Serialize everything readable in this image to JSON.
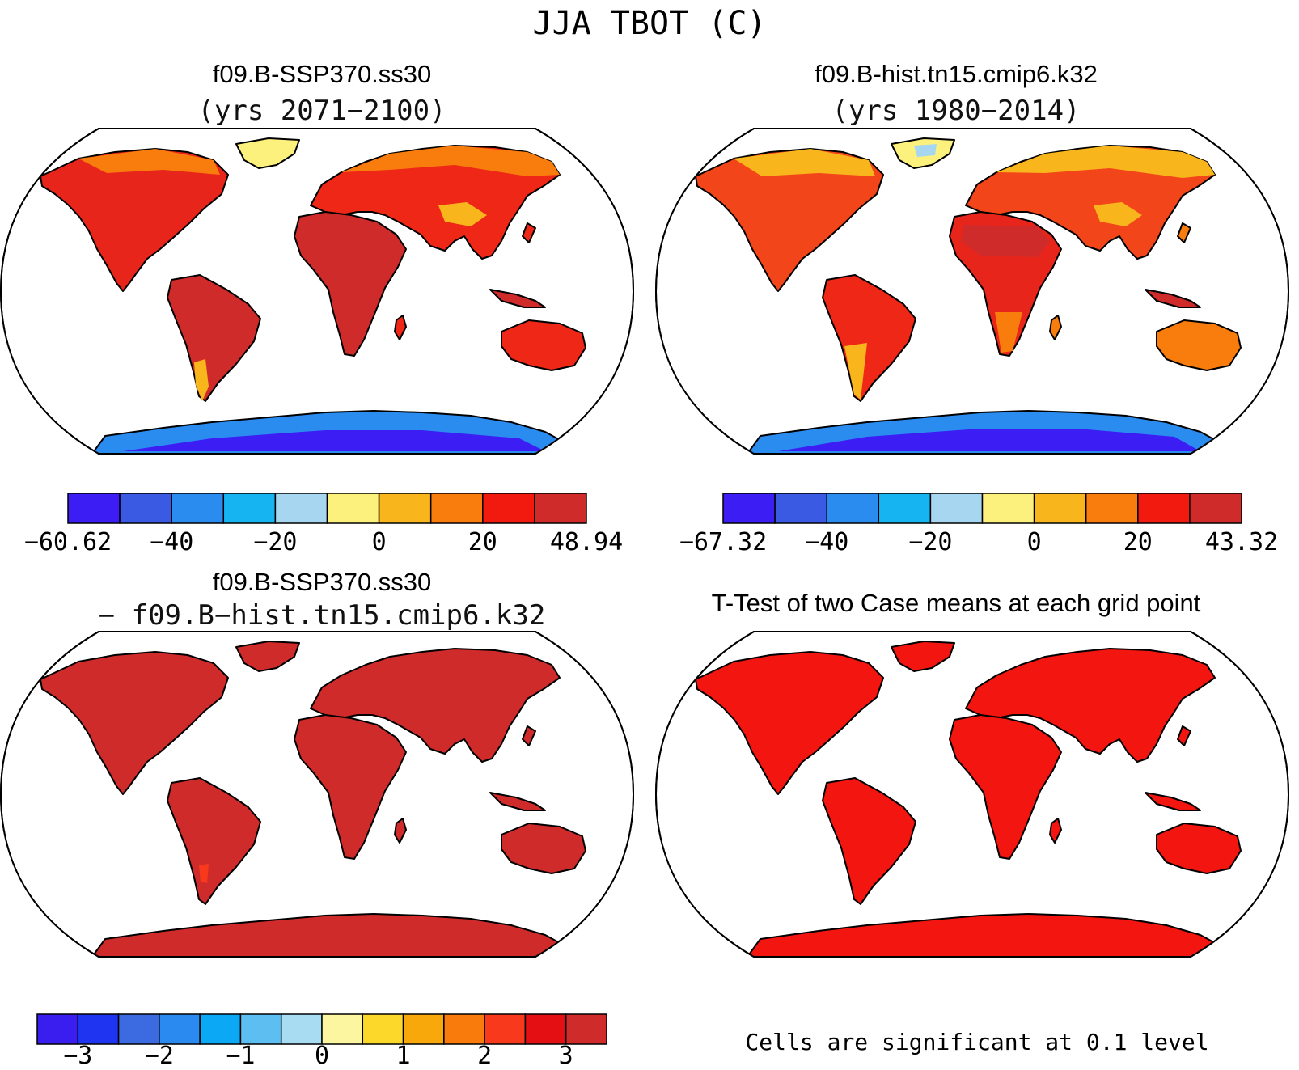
{
  "title": "JJA TBOT (C)",
  "colors": {
    "cool": [
      "#3c1ef5",
      "#3b5ae3",
      "#2b8cf0",
      "#17b4f2",
      "#a6d6f0"
    ],
    "warm": [
      "#fdf17e",
      "#f9b51c",
      "#f97d0d",
      "#f2190f",
      "#d02b2b"
    ],
    "diff": [
      "#3a1ef0",
      "#1e34f0",
      "#3c6ae0",
      "#2b8af0",
      "#0aa8f5",
      "#5dbef2",
      "#a8dcf2",
      "#fdf6a0",
      "#fbd82a",
      "#f9a80c",
      "#f97b0b",
      "#f9391c",
      "#e30f12",
      "#d02b2b"
    ],
    "ttest_land": "#f3150f"
  },
  "panels": [
    {
      "id": "case1",
      "title": "f09.B-SSP370.ss30",
      "subtitle": "(yrs 2071−2100)",
      "colorbar": {
        "labels": [
          "−60.62",
          "−40",
          "−20",
          "0",
          "20",
          "48.94"
        ]
      }
    },
    {
      "id": "case2",
      "title": "f09.B-hist.tn15.cmip6.k32",
      "subtitle": "(yrs 1980−2014)",
      "colorbar": {
        "labels": [
          "−67.32",
          "−40",
          "−20",
          "0",
          "20",
          "43.32"
        ]
      }
    },
    {
      "id": "diff",
      "title": "f09.B-SSP370.ss30",
      "subtitle": "− f09.B−hist.tn15.cmip6.k32",
      "colorbar": {
        "labels": [
          "−3",
          "−2",
          "−1",
          "0",
          "1",
          "2",
          "3"
        ]
      }
    },
    {
      "id": "ttest",
      "title": "T-Test of two Case means at each grid point",
      "footnote": "Cells are significant at 0.1 level"
    }
  ]
}
